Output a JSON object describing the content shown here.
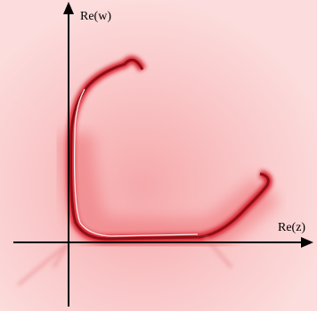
{
  "figure": {
    "x_axis_label": "Re(z)",
    "y_axis_label": "Re(w)"
  }
}
